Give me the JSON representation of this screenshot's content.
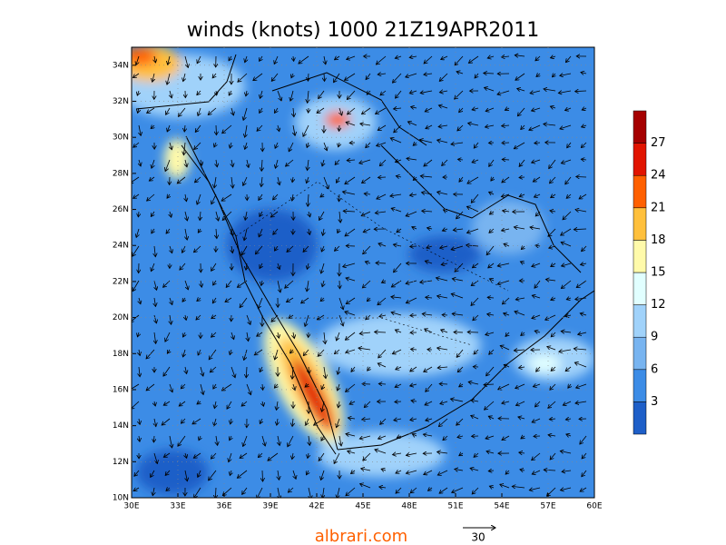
{
  "title": "winds (knots) 1000 21Z19APR2011",
  "lat_labels": [
    "10N",
    "12N",
    "14N",
    "16N",
    "18N",
    "20N",
    "22N",
    "24N",
    "26N",
    "28N",
    "30N",
    "32N",
    "34N"
  ],
  "lon_labels": [
    "30E",
    "33E",
    "36E",
    "39E",
    "42E",
    "45E",
    "48E",
    "51E",
    "54E",
    "57E",
    "60E"
  ],
  "colorbar_labels": [
    "3",
    "6",
    "9",
    "12",
    "15",
    "18",
    "21",
    "24",
    "27"
  ],
  "watermark": "albrari.com",
  "reference_vector_label": "30"
}
